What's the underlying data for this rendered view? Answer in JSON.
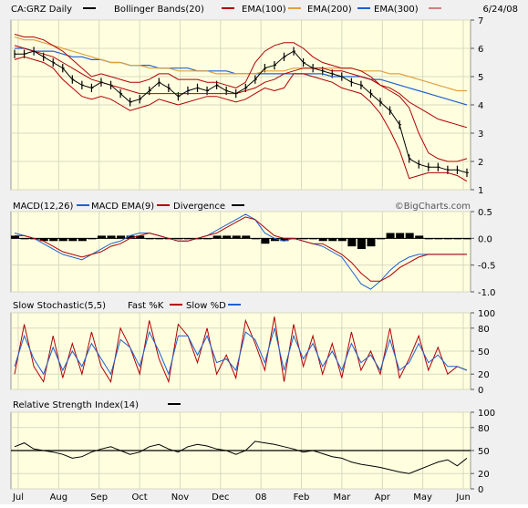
{
  "header": {
    "symbol": "CA:GRZ Daily",
    "bb_label": "Bollinger Bands(20)",
    "ema100_label": "EMA(100)",
    "ema200_label": "EMA(200)",
    "ema300_label": "EMA(300)",
    "date": "6/24/08"
  },
  "watermark": "©BigCharts.com",
  "colors": {
    "panel_bg": "#ffffe0",
    "frame_bg": "#f0f0f0",
    "bb": "#b00000",
    "ema100": "#b00000",
    "ema200": "#e0a040",
    "ema300": "#2060d0",
    "ema300_legend": "#d08080",
    "macd": "#2060d0",
    "macd_ema": "#b00000",
    "divergence": "#000000",
    "fast_k": "#b00000",
    "slow_d": "#2060d0",
    "rsi": "#000000"
  },
  "panels": {
    "macd": {
      "title": "MACD(12,26)",
      "series1": "MACD EMA(9)",
      "series2": "Divergence"
    },
    "stoch": {
      "title": "Slow Stochastic(5,5)",
      "series1": "Fast %K",
      "series2": "Slow %D"
    },
    "rsi": {
      "title": "Relative Strength Index(14)"
    }
  },
  "chart_data": {
    "type": "line",
    "x_ticks": [
      "Jul",
      "Aug",
      "Sep",
      "Oct",
      "Nov",
      "Dec",
      "08",
      "Feb",
      "Mar",
      "Apr",
      "May",
      "Jun"
    ],
    "price": {
      "y_ticks": [
        1,
        2,
        3,
        4,
        5,
        6,
        7
      ],
      "ylim": [
        1,
        7
      ],
      "close": [
        5.8,
        5.8,
        5.9,
        5.7,
        5.5,
        5.3,
        4.9,
        4.7,
        4.6,
        4.8,
        4.7,
        4.4,
        4.1,
        4.2,
        4.5,
        4.8,
        4.6,
        4.3,
        4.5,
        4.6,
        4.5,
        4.7,
        4.5,
        4.4,
        4.6,
        4.9,
        5.3,
        5.4,
        5.7,
        5.9,
        5.5,
        5.3,
        5.2,
        5.1,
        5.0,
        4.8,
        4.7,
        4.4,
        4.1,
        3.8,
        3.3,
        2.1,
        1.9,
        1.8,
        1.8,
        1.7,
        1.7,
        1.6
      ],
      "bb_upper": [
        6.5,
        6.4,
        6.4,
        6.3,
        6.1,
        5.9,
        5.6,
        5.3,
        5.0,
        5.1,
        5.0,
        4.9,
        4.8,
        4.8,
        4.9,
        5.1,
        5.1,
        4.9,
        4.9,
        4.9,
        4.8,
        4.8,
        4.7,
        4.6,
        4.8,
        5.5,
        5.9,
        6.1,
        6.2,
        6.2,
        6.0,
        5.7,
        5.5,
        5.4,
        5.3,
        5.3,
        5.2,
        5.0,
        4.7,
        4.5,
        4.3,
        3.9,
        3.0,
        2.3,
        2.1,
        2.0,
        2.0,
        2.1
      ],
      "bb_lower": [
        5.6,
        5.7,
        5.6,
        5.5,
        5.3,
        4.9,
        4.6,
        4.3,
        4.2,
        4.3,
        4.2,
        4.0,
        3.8,
        3.9,
        4.0,
        4.2,
        4.1,
        4.0,
        4.1,
        4.2,
        4.3,
        4.3,
        4.2,
        4.1,
        4.2,
        4.4,
        4.6,
        4.5,
        4.6,
        5.1,
        5.1,
        5.0,
        4.9,
        4.8,
        4.6,
        4.5,
        4.4,
        4.1,
        3.7,
        3.1,
        2.4,
        1.4,
        1.5,
        1.6,
        1.6,
        1.6,
        1.5,
        1.3
      ],
      "ema100": [
        6.1,
        6.0,
        5.9,
        5.8,
        5.7,
        5.5,
        5.3,
        5.1,
        4.9,
        4.8,
        4.7,
        4.6,
        4.5,
        4.4,
        4.4,
        4.4,
        4.4,
        4.4,
        4.4,
        4.4,
        4.4,
        4.4,
        4.4,
        4.4,
        4.5,
        4.6,
        4.8,
        4.9,
        5.1,
        5.2,
        5.3,
        5.3,
        5.3,
        5.2,
        5.2,
        5.1,
        5.0,
        4.9,
        4.7,
        4.6,
        4.4,
        4.1,
        3.9,
        3.7,
        3.5,
        3.4,
        3.3,
        3.2
      ],
      "ema200": [
        6.4,
        6.3,
        6.3,
        6.2,
        6.1,
        6.0,
        5.9,
        5.8,
        5.7,
        5.6,
        5.5,
        5.5,
        5.4,
        5.4,
        5.3,
        5.3,
        5.3,
        5.2,
        5.2,
        5.2,
        5.2,
        5.1,
        5.1,
        5.1,
        5.1,
        5.1,
        5.2,
        5.2,
        5.2,
        5.3,
        5.3,
        5.3,
        5.3,
        5.3,
        5.3,
        5.3,
        5.2,
        5.2,
        5.2,
        5.1,
        5.1,
        5.0,
        4.9,
        4.8,
        4.7,
        4.6,
        4.5,
        4.5
      ],
      "ema300": [
        6.0,
        6.0,
        5.9,
        5.9,
        5.9,
        5.8,
        5.7,
        5.7,
        5.6,
        5.6,
        5.5,
        5.5,
        5.4,
        5.4,
        5.4,
        5.3,
        5.3,
        5.3,
        5.3,
        5.2,
        5.2,
        5.2,
        5.2,
        5.1,
        5.1,
        5.1,
        5.1,
        5.1,
        5.1,
        5.1,
        5.1,
        5.1,
        5.1,
        5.0,
        5.0,
        5.0,
        5.0,
        4.9,
        4.9,
        4.8,
        4.7,
        4.6,
        4.5,
        4.4,
        4.3,
        4.2,
        4.1,
        4.0
      ]
    },
    "macd": {
      "y_ticks": [
        0.5,
        0.0,
        -0.5,
        -1.0
      ],
      "ylim": [
        -1.0,
        0.5
      ],
      "macd": [
        0.1,
        0.05,
        0.0,
        -0.1,
        -0.2,
        -0.3,
        -0.35,
        -0.4,
        -0.3,
        -0.2,
        -0.1,
        -0.05,
        0.05,
        0.1,
        0.1,
        0.05,
        0.0,
        -0.05,
        -0.05,
        0.0,
        0.05,
        0.15,
        0.25,
        0.35,
        0.45,
        0.35,
        0.1,
        0.0,
        -0.05,
        0.0,
        -0.05,
        -0.1,
        -0.15,
        -0.25,
        -0.35,
        -0.6,
        -0.85,
        -0.95,
        -0.8,
        -0.6,
        -0.45,
        -0.35,
        -0.3,
        -0.3,
        -0.3,
        -0.3,
        -0.3,
        -0.3
      ],
      "signal": [
        0.05,
        0.05,
        0.0,
        -0.05,
        -0.15,
        -0.25,
        -0.3,
        -0.35,
        -0.3,
        -0.25,
        -0.15,
        -0.1,
        0.0,
        0.05,
        0.1,
        0.05,
        0.0,
        -0.05,
        -0.05,
        0.0,
        0.05,
        0.1,
        0.2,
        0.3,
        0.4,
        0.35,
        0.2,
        0.05,
        0.0,
        0.0,
        -0.05,
        -0.1,
        -0.1,
        -0.2,
        -0.3,
        -0.45,
        -0.65,
        -0.8,
        -0.8,
        -0.7,
        -0.55,
        -0.45,
        -0.35,
        -0.3,
        -0.3,
        -0.3,
        -0.3,
        -0.3
      ],
      "divergence": [
        0.05,
        0.0,
        0.0,
        -0.05,
        -0.05,
        -0.05,
        -0.05,
        -0.05,
        0.0,
        0.05,
        0.05,
        0.05,
        0.05,
        0.05,
        0.0,
        0.0,
        0.0,
        0.0,
        0.0,
        0.0,
        0.0,
        0.05,
        0.05,
        0.05,
        0.05,
        0.0,
        -0.1,
        -0.05,
        -0.05,
        0.0,
        0.0,
        0.0,
        -0.05,
        -0.05,
        -0.05,
        -0.15,
        -0.2,
        -0.15,
        0.0,
        0.1,
        0.1,
        0.1,
        0.05,
        0.0,
        0.0,
        0.0,
        0.0,
        0.0
      ]
    },
    "stochastic": {
      "y_ticks": [
        100,
        80,
        50,
        20,
        0
      ],
      "ylim": [
        0,
        100
      ],
      "fast_k": [
        20,
        85,
        30,
        10,
        70,
        15,
        60,
        20,
        75,
        30,
        10,
        80,
        55,
        20,
        90,
        40,
        10,
        85,
        70,
        35,
        80,
        20,
        45,
        15,
        90,
        60,
        25,
        95,
        10,
        85,
        30,
        70,
        20,
        60,
        15,
        75,
        25,
        50,
        20,
        80,
        15,
        40,
        70,
        25,
        55,
        20,
        30,
        25
      ],
      "slow_d": [
        30,
        70,
        40,
        20,
        55,
        25,
        50,
        30,
        60,
        40,
        20,
        65,
        55,
        30,
        75,
        50,
        20,
        70,
        70,
        45,
        70,
        35,
        40,
        25,
        75,
        65,
        35,
        80,
        25,
        70,
        40,
        60,
        30,
        50,
        25,
        60,
        35,
        45,
        25,
        65,
        25,
        35,
        60,
        35,
        45,
        30,
        30,
        25
      ]
    },
    "rsi": {
      "y_ticks": [
        100,
        80,
        50,
        20,
        0
      ],
      "ylim": [
        0,
        100
      ],
      "reference": 50,
      "values": [
        55,
        60,
        52,
        50,
        48,
        45,
        40,
        42,
        48,
        52,
        55,
        50,
        45,
        48,
        55,
        58,
        52,
        48,
        55,
        58,
        56,
        52,
        50,
        45,
        50,
        62,
        60,
        58,
        55,
        52,
        48,
        50,
        46,
        42,
        40,
        35,
        32,
        30,
        28,
        25,
        22,
        20,
        25,
        30,
        35,
        38,
        30,
        40
      ]
    }
  }
}
